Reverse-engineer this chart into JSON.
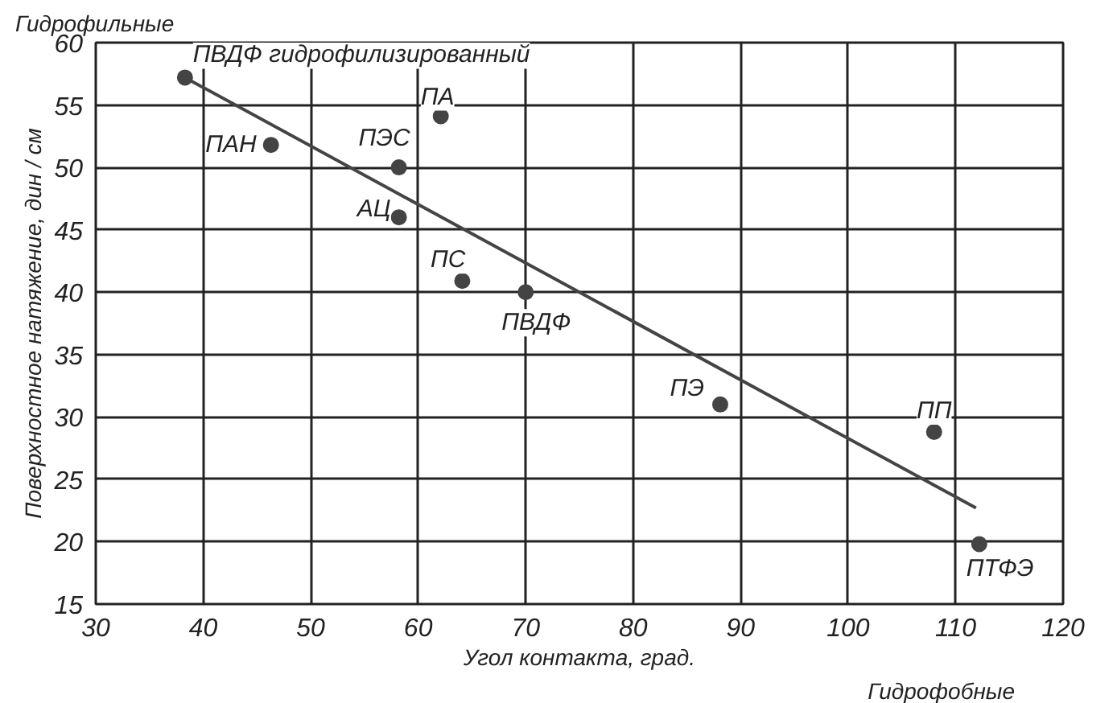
{
  "chart_data": {
    "type": "scatter",
    "xlabel": "Угол контакта, град.",
    "ylabel": "Поверхностное натяжение, дин / см",
    "series": [
      {
        "color": "#444444",
        "marker": "circle",
        "x": [
          38.3,
          46.3,
          58.2,
          62.1,
          58.2,
          64.1,
          70.0,
          88.1,
          108.0,
          112.2
        ],
        "values": [
          57.2,
          51.8,
          50.0,
          54.1,
          46.0,
          40.9,
          40.0,
          31.0,
          28.8,
          19.8
        ]
      },
      {
        "type": "line",
        "color": "#444444",
        "x": [
          38.3,
          111.9
        ],
        "values": [
          57.2,
          22.7
        ]
      }
    ],
    "xlim": [
      30,
      120
    ],
    "ylim": [
      15,
      60
    ],
    "xticks": [
      30,
      40,
      50,
      60,
      70,
      80,
      90,
      100,
      110,
      120
    ],
    "yticks": [
      15,
      20,
      25,
      30,
      35,
      40,
      45,
      50,
      55,
      60
    ],
    "grid": true,
    "annotations": [
      {
        "text": "ПВДФ гидрофилизированный",
        "x": 38.3,
        "y": 57.2
      },
      {
        "text": "ПАН",
        "x": 46.3,
        "y": 51.8
      },
      {
        "text": "ПЭС",
        "x": 58.2,
        "y": 50.0
      },
      {
        "text": "ПА",
        "x": 62.1,
        "y": 54.1
      },
      {
        "text": "АЦ",
        "x": 58.2,
        "y": 46.0
      },
      {
        "text": "ПС",
        "x": 64.1,
        "y": 40.9
      },
      {
        "text": "ПВДФ",
        "x": 70.0,
        "y": 40.0
      },
      {
        "text": "ПЭ",
        "x": 88.1,
        "y": 31.0
      },
      {
        "text": "ПП",
        "x": 108.0,
        "y": 28.8
      },
      {
        "text": "ПТФЭ",
        "x": 112.2,
        "y": 19.8
      },
      "Гидрофильные",
      "Гидрофобные"
    ]
  }
}
